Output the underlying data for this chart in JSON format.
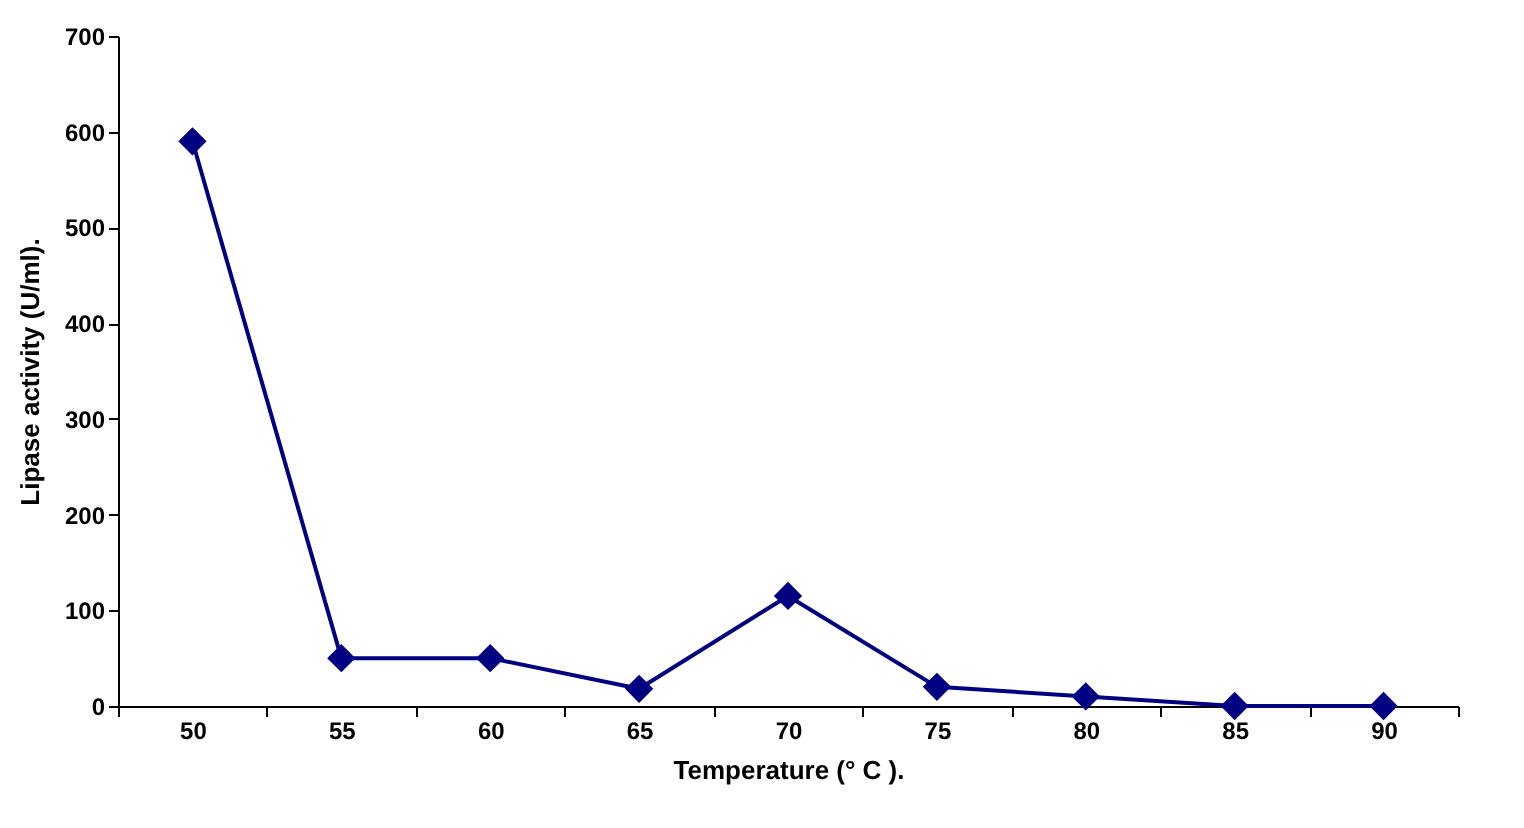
{
  "chart_data": {
    "type": "line",
    "xlabel": "Temperature (° C ).",
    "ylabel": "Lipase  activity (U/ml).",
    "categories": [
      "50",
      "55",
      "60",
      "65",
      "70",
      "75",
      "80",
      "85",
      "90"
    ],
    "series": [
      {
        "color": "#000080",
        "values": [
          590,
          50,
          50,
          18,
          115,
          20,
          10,
          0,
          0
        ]
      }
    ],
    "ylim": [
      0,
      700
    ],
    "yticks": [
      0,
      100,
      200,
      300,
      400,
      500,
      600,
      700
    ],
    "grid": false,
    "legend": false,
    "marker": "diamond",
    "line_style": "solid"
  }
}
